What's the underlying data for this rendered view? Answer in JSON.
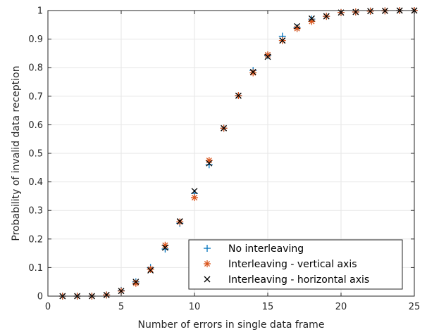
{
  "chart_data": {
    "type": "scatter",
    "title": "",
    "xlabel": "Number of errors in single data frame",
    "ylabel": "Probability of invalid data reception",
    "xlim": [
      0,
      25
    ],
    "ylim": [
      0,
      1
    ],
    "xticks": [
      0,
      5,
      10,
      15,
      20,
      25
    ],
    "yticks": [
      0,
      0.1,
      0.2,
      0.3,
      0.4,
      0.5,
      0.6,
      0.7,
      0.8,
      0.9,
      1
    ],
    "xtick_labels": [
      "0",
      "5",
      "10",
      "15",
      "20",
      "25"
    ],
    "ytick_labels": [
      "0",
      "0.1",
      "0.2",
      "0.3",
      "0.4",
      "0.5",
      "0.6",
      "0.7",
      "0.8",
      "0.9",
      "1"
    ],
    "grid": true,
    "legend_position": "bottom-right",
    "x": [
      1,
      2,
      3,
      4,
      5,
      6,
      7,
      8,
      9,
      10,
      11,
      12,
      13,
      14,
      15,
      16,
      17,
      18,
      19,
      20,
      21,
      22,
      23,
      24,
      25
    ],
    "series": [
      {
        "name": "No interleaving",
        "marker": "plus",
        "color": "#0072BD",
        "values": [
          0,
          0,
          0,
          0.004,
          0.02,
          0.05,
          0.1,
          0.165,
          0.255,
          0.36,
          0.46,
          0.588,
          0.702,
          0.79,
          0.842,
          0.91,
          0.94,
          0.97,
          0.98,
          0.993,
          0.995,
          0.998,
          0.999,
          1,
          1
        ]
      },
      {
        "name": "Interleaving - vertical axis",
        "marker": "asterisk",
        "color": "#D95319",
        "values": [
          0,
          0,
          0,
          0.004,
          0.018,
          0.045,
          0.094,
          0.178,
          0.26,
          0.345,
          0.475,
          0.588,
          0.702,
          0.782,
          0.845,
          0.895,
          0.937,
          0.962,
          0.98,
          0.993,
          0.995,
          0.998,
          0.999,
          1,
          1
        ]
      },
      {
        "name": "Interleaving - horizontal axis",
        "marker": "cross",
        "color": "#000000",
        "values": [
          0,
          0,
          0,
          0.004,
          0.018,
          0.05,
          0.09,
          0.17,
          0.262,
          0.368,
          0.465,
          0.588,
          0.702,
          0.785,
          0.838,
          0.895,
          0.945,
          0.972,
          0.98,
          0.993,
          0.995,
          0.998,
          0.999,
          1,
          1
        ]
      }
    ]
  }
}
